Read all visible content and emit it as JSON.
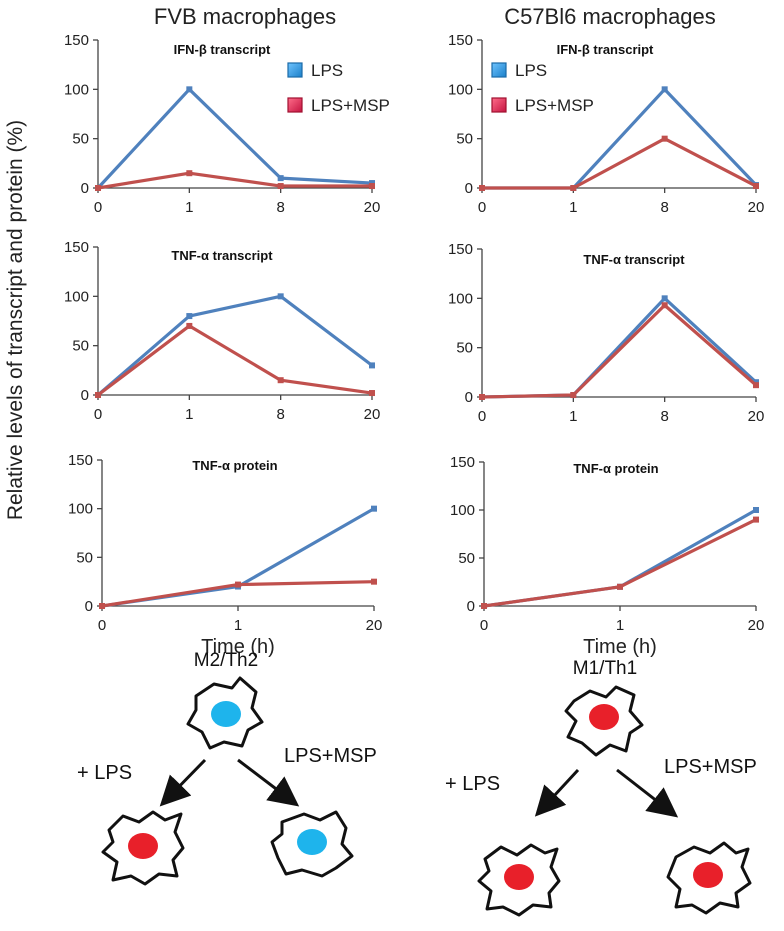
{
  "figure": {
    "y_axis_label": "Relative levels of transcript and protein (%)",
    "colors": {
      "lps": "#4f81bd",
      "lps_msp": "#c0504d",
      "nucleus_blue": "#1eb4ec",
      "nucleus_red": "#e8202a"
    }
  },
  "columns": [
    {
      "title": "FVB macrophages"
    },
    {
      "title": "C57Bl6 macrophages"
    }
  ],
  "legend": [
    {
      "label": "LPS",
      "color": "#2d8fd6"
    },
    {
      "label": "LPS+MSP",
      "color": "#d8244a"
    }
  ],
  "chart_data": [
    {
      "id": "fvb-ifn",
      "type": "line",
      "title": "IFN-β transcript",
      "categories": [
        "0",
        "1",
        "8",
        "20"
      ],
      "xlabel": "",
      "ylabel": "",
      "ylim": [
        0,
        150
      ],
      "yticks": [
        0,
        50,
        100,
        150
      ],
      "series": [
        {
          "name": "LPS",
          "values": [
            0,
            100,
            10,
            5
          ]
        },
        {
          "name": "LPS+MSP",
          "values": [
            0,
            15,
            2,
            2
          ]
        }
      ]
    },
    {
      "id": "c57-ifn",
      "type": "line",
      "title": "IFN-β transcript",
      "categories": [
        "0",
        "1",
        "8",
        "20"
      ],
      "xlabel": "",
      "ylabel": "",
      "ylim": [
        0,
        150
      ],
      "yticks": [
        0,
        50,
        100,
        150
      ],
      "series": [
        {
          "name": "LPS",
          "values": [
            0,
            0,
            100,
            3
          ]
        },
        {
          "name": "LPS+MSP",
          "values": [
            0,
            0,
            50,
            2
          ]
        }
      ]
    },
    {
      "id": "fvb-tnf",
      "type": "line",
      "title": "TNF-α transcript",
      "categories": [
        "0",
        "1",
        "8",
        "20"
      ],
      "xlabel": "",
      "ylabel": "",
      "ylim": [
        0,
        150
      ],
      "yticks": [
        0,
        50,
        100,
        150
      ],
      "series": [
        {
          "name": "LPS",
          "values": [
            0,
            80,
            100,
            30
          ]
        },
        {
          "name": "LPS+MSP",
          "values": [
            0,
            70,
            15,
            2
          ]
        }
      ]
    },
    {
      "id": "c57-tnf",
      "type": "line",
      "title": "TNF-α transcript",
      "categories": [
        "0",
        "1",
        "8",
        "20"
      ],
      "xlabel": "",
      "ylabel": "",
      "ylim": [
        0,
        150
      ],
      "yticks": [
        0,
        50,
        100,
        150
      ],
      "series": [
        {
          "name": "LPS",
          "values": [
            0,
            2,
            100,
            15
          ]
        },
        {
          "name": "LPS+MSP",
          "values": [
            0,
            2,
            93,
            12
          ]
        }
      ]
    },
    {
      "id": "fvb-prot",
      "type": "line",
      "title": "TNF-α protein",
      "categories": [
        "0",
        "1",
        "20"
      ],
      "xlabel": "Time (h)",
      "ylabel": "",
      "ylim": [
        0,
        150
      ],
      "yticks": [
        0,
        50,
        100,
        150
      ],
      "series": [
        {
          "name": "LPS",
          "values": [
            0,
            20,
            100
          ]
        },
        {
          "name": "LPS+MSP",
          "values": [
            0,
            22,
            25
          ]
        }
      ]
    },
    {
      "id": "c57-prot",
      "type": "line",
      "title": "TNF-α protein",
      "categories": [
        "0",
        "1",
        "20"
      ],
      "xlabel": "Time (h)",
      "ylabel": "",
      "ylim": [
        0,
        150
      ],
      "yticks": [
        0,
        50,
        100,
        150
      ],
      "series": [
        {
          "name": "LPS",
          "values": [
            0,
            20,
            100
          ]
        },
        {
          "name": "LPS+MSP",
          "values": [
            0,
            20,
            90
          ]
        }
      ]
    }
  ],
  "diagram": {
    "left": {
      "phenotype": "M2/Th2",
      "left_arrow_label": "+ LPS",
      "right_arrow_label": "LPS+MSP"
    },
    "right": {
      "phenotype": "M1/Th1",
      "left_arrow_label": "+ LPS",
      "right_arrow_label": "LPS+MSP"
    }
  }
}
